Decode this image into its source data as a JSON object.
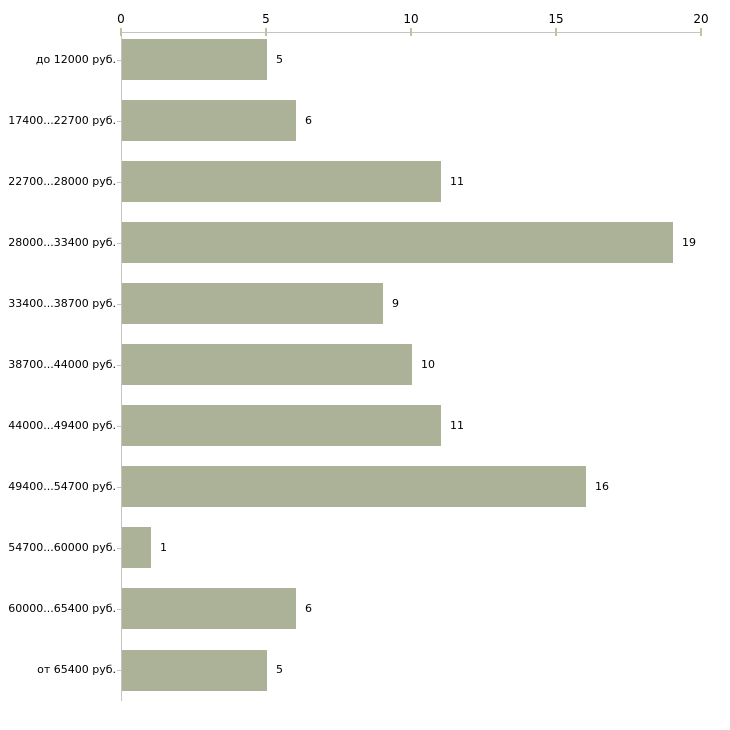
{
  "chart_data": {
    "type": "bar",
    "orientation": "horizontal",
    "title": "",
    "xlabel": "",
    "ylabel": "",
    "categories": [
      "до 12000 руб.",
      "17400...22700 руб.",
      "22700...28000 руб.",
      "28000...33400 руб.",
      "33400...38700 руб.",
      "38700...44000 руб.",
      "44000...49400 руб.",
      "49400...54700 руб.",
      "54700...60000 руб.",
      "60000...65400 руб.",
      "от 65400 руб."
    ],
    "values": [
      5,
      6,
      11,
      19,
      9,
      10,
      11,
      16,
      1,
      6,
      5
    ],
    "value_labels": [
      "5",
      "6",
      "11",
      "19",
      "9",
      "10",
      "11",
      "16",
      "1",
      "6",
      "5"
    ],
    "x_ticks": [
      "0",
      "5",
      "10",
      "15",
      "20"
    ],
    "x_tick_values": [
      0,
      5,
      10,
      15,
      20
    ],
    "xlim": [
      0,
      20
    ],
    "grid": false,
    "legend": false,
    "axis_position": "top-left",
    "bar_color": "#abb298",
    "axis_color": "#c4c4c4",
    "tick_color": "#c0c3a0",
    "label_color": "#000000",
    "background": "#ffffff"
  }
}
